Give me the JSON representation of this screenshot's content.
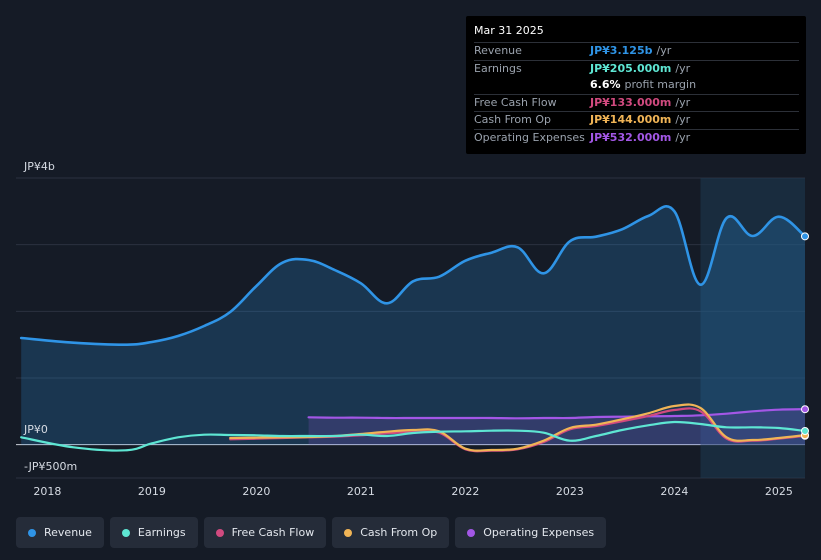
{
  "chart_data": {
    "type": "line",
    "title": "",
    "y_axis": {
      "top_label": "JP¥4b",
      "zero_label": "JP¥0",
      "bottom_label": "-JP¥500m",
      "ylim": [
        -500,
        4000
      ],
      "unit": "JP¥m"
    },
    "x_ticks": [
      "2018",
      "2019",
      "2020",
      "2021",
      "2022",
      "2023",
      "2024",
      "2025"
    ],
    "xlim": [
      2017.7,
      2025.25
    ],
    "highlight_start": 2024.25,
    "series": [
      {
        "name": "Revenue",
        "color": "#2f94e6",
        "fill": true,
        "x": [
          2017.75,
          2018.25,
          2018.75,
          2019.0,
          2019.25,
          2019.5,
          2019.75,
          2020.0,
          2020.25,
          2020.5,
          2020.75,
          2021.0,
          2021.25,
          2021.5,
          2021.75,
          2022.0,
          2022.25,
          2022.5,
          2022.75,
          2023.0,
          2023.25,
          2023.5,
          2023.75,
          2024.0,
          2024.25,
          2024.5,
          2024.75,
          2025.0,
          2025.25
        ],
        "values": [
          1600,
          1530,
          1500,
          1540,
          1630,
          1780,
          1990,
          2380,
          2730,
          2770,
          2620,
          2420,
          2120,
          2450,
          2520,
          2760,
          2880,
          2960,
          2570,
          3050,
          3120,
          3230,
          3430,
          3500,
          2400,
          3400,
          3130,
          3420,
          3125
        ]
      },
      {
        "name": "Earnings",
        "color": "#5ee6d3",
        "fill": false,
        "x": [
          2017.75,
          2018.25,
          2018.75,
          2019.0,
          2019.25,
          2019.5,
          2019.75,
          2020.0,
          2020.25,
          2020.5,
          2020.75,
          2021.0,
          2021.25,
          2021.5,
          2021.75,
          2022.0,
          2022.25,
          2022.5,
          2022.75,
          2023.0,
          2023.25,
          2023.5,
          2023.75,
          2024.0,
          2024.25,
          2024.5,
          2024.75,
          2025.0,
          2025.25
        ],
        "values": [
          110,
          -40,
          -85,
          20,
          110,
          150,
          145,
          140,
          130,
          130,
          130,
          150,
          130,
          175,
          195,
          200,
          210,
          210,
          180,
          60,
          130,
          220,
          290,
          340,
          310,
          260,
          260,
          250,
          205
        ]
      },
      {
        "name": "Free Cash Flow",
        "color": "#d14a7f",
        "fill": false,
        "x": [
          2019.75,
          2020.0,
          2020.25,
          2020.5,
          2020.75,
          2021.0,
          2021.25,
          2021.5,
          2021.75,
          2022.0,
          2022.25,
          2022.5,
          2022.75,
          2023.0,
          2023.25,
          2023.5,
          2023.75,
          2024.0,
          2024.25,
          2024.5,
          2024.75,
          2025.0,
          2025.25
        ],
        "values": [
          80,
          90,
          100,
          110,
          120,
          140,
          170,
          190,
          180,
          -70,
          -90,
          -70,
          40,
          230,
          280,
          350,
          430,
          520,
          500,
          90,
          60,
          90,
          133
        ]
      },
      {
        "name": "Cash From Op",
        "color": "#f0b456",
        "fill": false,
        "x": [
          2019.75,
          2020.0,
          2020.25,
          2020.5,
          2020.75,
          2021.0,
          2021.25,
          2021.5,
          2021.75,
          2022.0,
          2022.25,
          2022.5,
          2022.75,
          2023.0,
          2023.25,
          2023.5,
          2023.75,
          2024.0,
          2024.25,
          2024.5,
          2024.75,
          2025.0,
          2025.25
        ],
        "values": [
          100,
          105,
          110,
          115,
          130,
          160,
          195,
          220,
          200,
          -60,
          -80,
          -60,
          60,
          250,
          300,
          380,
          470,
          580,
          550,
          110,
          70,
          100,
          144
        ]
      },
      {
        "name": "Operating Expenses",
        "color": "#a357e6",
        "fill": true,
        "x": [
          2020.5,
          2020.75,
          2021.0,
          2021.25,
          2021.5,
          2021.75,
          2022.0,
          2022.25,
          2022.5,
          2022.75,
          2023.0,
          2023.25,
          2023.5,
          2023.75,
          2024.0,
          2024.25,
          2024.5,
          2024.75,
          2025.0,
          2025.25
        ],
        "values": [
          410,
          405,
          405,
          400,
          400,
          400,
          400,
          400,
          395,
          400,
          400,
          415,
          420,
          425,
          430,
          440,
          465,
          500,
          525,
          532
        ]
      }
    ]
  },
  "tooltip": {
    "date": "Mar 31 2025",
    "rows": [
      {
        "label": "Revenue",
        "value": "JP¥3.125b",
        "unit": "/yr",
        "color": "#2f94e6"
      },
      {
        "label": "Earnings",
        "value": "JP¥205.000m",
        "unit": "/yr",
        "color": "#5ee6d3"
      },
      {
        "label": "",
        "value": "6.6%",
        "unit": "profit margin",
        "color": "#ffffff"
      },
      {
        "label": "Free Cash Flow",
        "value": "JP¥133.000m",
        "unit": "/yr",
        "color": "#d14a7f"
      },
      {
        "label": "Cash From Op",
        "value": "JP¥144.000m",
        "unit": "/yr",
        "color": "#f0b456"
      },
      {
        "label": "Operating Expenses",
        "value": "JP¥532.000m",
        "unit": "/yr",
        "color": "#a357e6"
      }
    ]
  },
  "legend": [
    {
      "label": "Revenue",
      "color": "#2f94e6"
    },
    {
      "label": "Earnings",
      "color": "#5ee6d3"
    },
    {
      "label": "Free Cash Flow",
      "color": "#d14a7f"
    },
    {
      "label": "Cash From Op",
      "color": "#f0b456"
    },
    {
      "label": "Operating Expenses",
      "color": "#a357e6"
    }
  ]
}
